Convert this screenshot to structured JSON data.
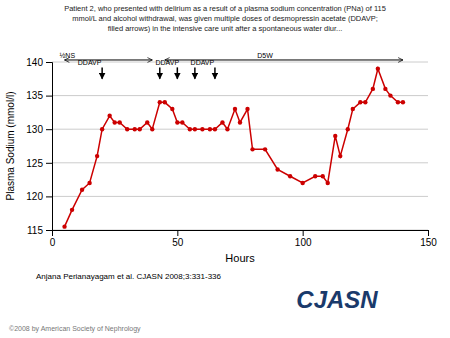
{
  "chart_data": {
    "type": "line",
    "title": "Patient 2, who presented with delirium as a result of a plasma sodium concentration (PNa) of 115\nmmol/L and alcohol withdrawal, was given multiple doses of desmopressin acetate (DDAVP;\nfilled arrows) in the intensive care unit after a spontaneous water diur...",
    "xlabel": "Hours",
    "ylabel": "Plasma Sodium (mmol/l)",
    "x": [
      5,
      8,
      12,
      15,
      18,
      20,
      23,
      25,
      27,
      30,
      33,
      35,
      38,
      40,
      43,
      45,
      48,
      50,
      52,
      55,
      57,
      60,
      63,
      65,
      68,
      70,
      73,
      75,
      78,
      80,
      85,
      90,
      95,
      100,
      105,
      108,
      110,
      113,
      115,
      118,
      120,
      123,
      125,
      128,
      130,
      133,
      135,
      138,
      140
    ],
    "values": [
      115.5,
      118,
      121,
      122,
      126,
      130,
      132,
      131,
      131,
      130,
      130,
      130,
      131,
      130,
      134,
      134,
      133,
      131,
      131,
      130,
      130,
      130,
      130,
      130,
      131,
      130,
      133,
      131,
      133,
      127,
      127,
      124,
      123,
      122,
      123,
      123,
      122,
      129,
      126,
      130,
      133,
      134,
      134,
      136,
      139,
      136,
      135,
      134,
      134
    ],
    "color": "#cc0000",
    "marker": "circle",
    "line_style": "solid",
    "xlim": [
      0,
      150
    ],
    "ylim": [
      115,
      140
    ],
    "xticks": [
      0,
      50,
      100,
      150
    ],
    "yticks": [
      115,
      120,
      125,
      130,
      135,
      140
    ],
    "grid": true,
    "arrows": [
      {
        "x": 20,
        "y_from": 139.2,
        "y_to": 137.5
      },
      {
        "x": 43,
        "y_from": 139.2,
        "y_to": 137.5
      },
      {
        "x": 50,
        "y_from": 139.2,
        "y_to": 137.5
      },
      {
        "x": 57,
        "y_from": 139.2,
        "y_to": 137.5
      },
      {
        "x": 65,
        "y_from": 139.2,
        "y_to": 137.5
      }
    ],
    "annotations": [
      {
        "text": "DDAVP",
        "x": 15,
        "y": 139.6
      },
      {
        "text": "DDAVP",
        "x": 46,
        "y": 139.6
      },
      {
        "text": "DDAVP",
        "x": 60,
        "y": 139.6
      }
    ],
    "ranges": [
      {
        "label": "½NS",
        "label_x": 3,
        "x_start": 5,
        "x_end": 40,
        "y": 140.3
      },
      {
        "label": "D5W",
        "label_x": 85,
        "x_start": 45,
        "x_end": 140,
        "y": 140.3
      }
    ],
    "citation": "Anjana Perianayagam et al. CJASN 2008;3:331-336",
    "logo_text": "CJASN",
    "copyright": "©2008 by American Society of Nephrology"
  }
}
